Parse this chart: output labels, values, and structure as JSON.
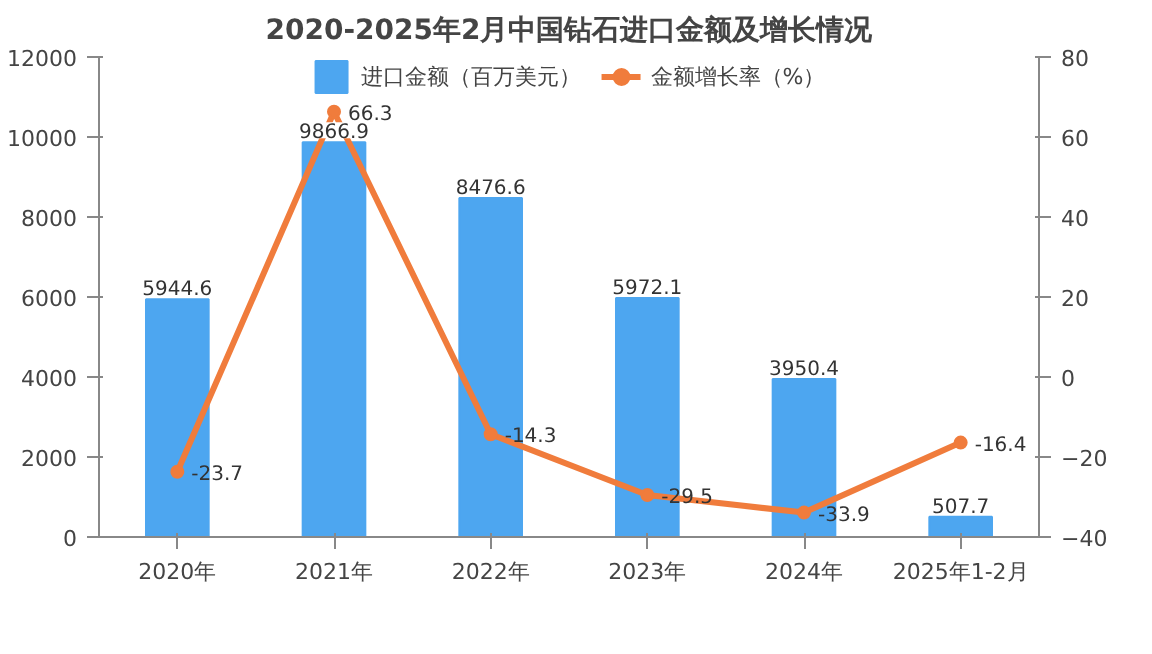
{
  "chart_data": {
    "type": "bar",
    "title": "2020-2025年2月中国钻石进口金额及增长情况",
    "categories": [
      "2020年",
      "2021年",
      "2022年",
      "2023年",
      "2024年",
      "2025年1-2月"
    ],
    "series": [
      {
        "name": "进口金额（百万美元）",
        "color": "#4da6f0",
        "values": [
          5944.6,
          9866.9,
          8476.6,
          5972.1,
          3950.4,
          507.7
        ]
      },
      {
        "name": "金额增长率（%）",
        "type": "line",
        "axis": "y2",
        "color": "#f07c3c",
        "marker": "circle",
        "values": [
          -23.7,
          66.3,
          -14.3,
          -29.5,
          -33.9,
          -16.4
        ]
      }
    ],
    "ylim": [
      0,
      12000
    ],
    "yticks": [
      0,
      2000,
      4000,
      6000,
      8000,
      10000,
      12000
    ],
    "y2lim": [
      -40,
      80
    ],
    "y2ticks": [
      -40,
      -20,
      0,
      20,
      40,
      60,
      80
    ],
    "data_labels": true,
    "legend": "top"
  }
}
